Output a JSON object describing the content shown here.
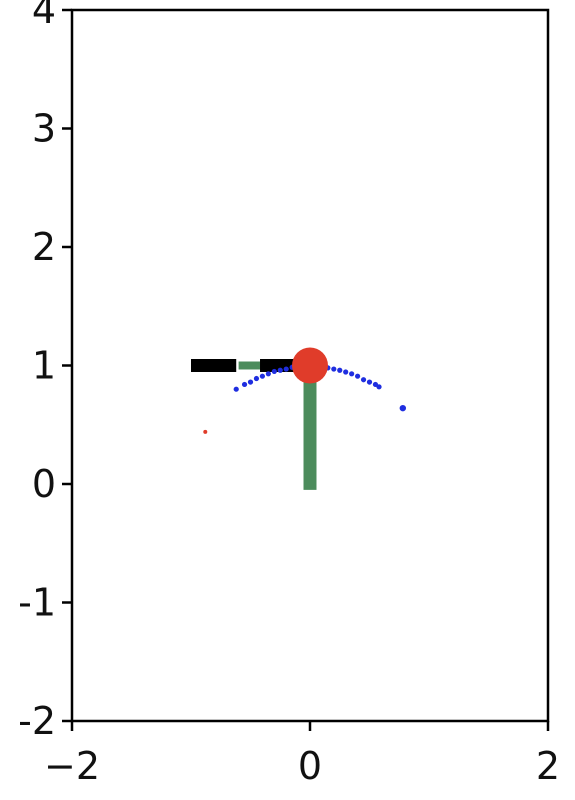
{
  "chart_data": {
    "type": "scatter",
    "title": "",
    "xlabel": "",
    "ylabel": "",
    "xlim": [
      -2,
      2
    ],
    "ylim": [
      -2,
      4
    ],
    "grid": false,
    "x_ticks": [
      {
        "value": -2,
        "label": "−2"
      },
      {
        "value": 0,
        "label": "0"
      },
      {
        "value": 2,
        "label": "2"
      }
    ],
    "y_ticks": [
      {
        "value": -2,
        "label": "-2"
      },
      {
        "value": -1,
        "label": "-1"
      },
      {
        "value": 0,
        "label": "0"
      },
      {
        "value": 1,
        "label": "1"
      },
      {
        "value": 2,
        "label": "2"
      },
      {
        "value": 3,
        "label": "3"
      },
      {
        "value": 4,
        "label": "4"
      }
    ],
    "segments": [
      {
        "name": "green-arm-vertical",
        "color": "#4c8c5c",
        "thickness": "thick",
        "from": [
          0.0,
          1.0
        ],
        "to": [
          0.0,
          -0.05
        ]
      },
      {
        "name": "green-arm-horizontal",
        "color": "#4c8c5c",
        "thickness": "medium",
        "from": [
          -0.6,
          1.0
        ],
        "to": [
          0.0,
          1.0
        ]
      },
      {
        "name": "black-link-left",
        "color": "#000000",
        "thickness": "thick",
        "from": [
          -1.0,
          1.0
        ],
        "to": [
          -0.62,
          1.0
        ]
      },
      {
        "name": "black-link-right",
        "color": "#000000",
        "thickness": "thick",
        "from": [
          -0.42,
          1.0
        ],
        "to": [
          0.0,
          1.0
        ]
      }
    ],
    "joint": {
      "name": "red-joint",
      "color": "#e03c2a",
      "x": 0.0,
      "y": 1.0
    },
    "trail": {
      "color": "#1f2ee0",
      "points": [
        [
          -0.62,
          0.8
        ],
        [
          -0.55,
          0.84
        ],
        [
          -0.5,
          0.86
        ],
        [
          -0.45,
          0.89
        ],
        [
          -0.4,
          0.91
        ],
        [
          -0.35,
          0.93
        ],
        [
          -0.3,
          0.95
        ],
        [
          -0.25,
          0.96
        ],
        [
          -0.2,
          0.97
        ],
        [
          -0.15,
          0.985
        ],
        [
          -0.1,
          0.99
        ],
        [
          -0.05,
          0.995
        ],
        [
          0.0,
          1.0
        ],
        [
          0.05,
          0.995
        ],
        [
          0.1,
          0.99
        ],
        [
          0.15,
          0.98
        ],
        [
          0.2,
          0.97
        ],
        [
          0.25,
          0.96
        ],
        [
          0.3,
          0.945
        ],
        [
          0.35,
          0.93
        ],
        [
          0.4,
          0.91
        ],
        [
          0.45,
          0.88
        ],
        [
          0.5,
          0.86
        ],
        [
          0.55,
          0.84
        ],
        [
          0.58,
          0.82
        ],
        [
          0.78,
          0.64
        ]
      ]
    },
    "target": {
      "color": "#e03c2a",
      "x": -0.88,
      "y": 0.44
    }
  }
}
